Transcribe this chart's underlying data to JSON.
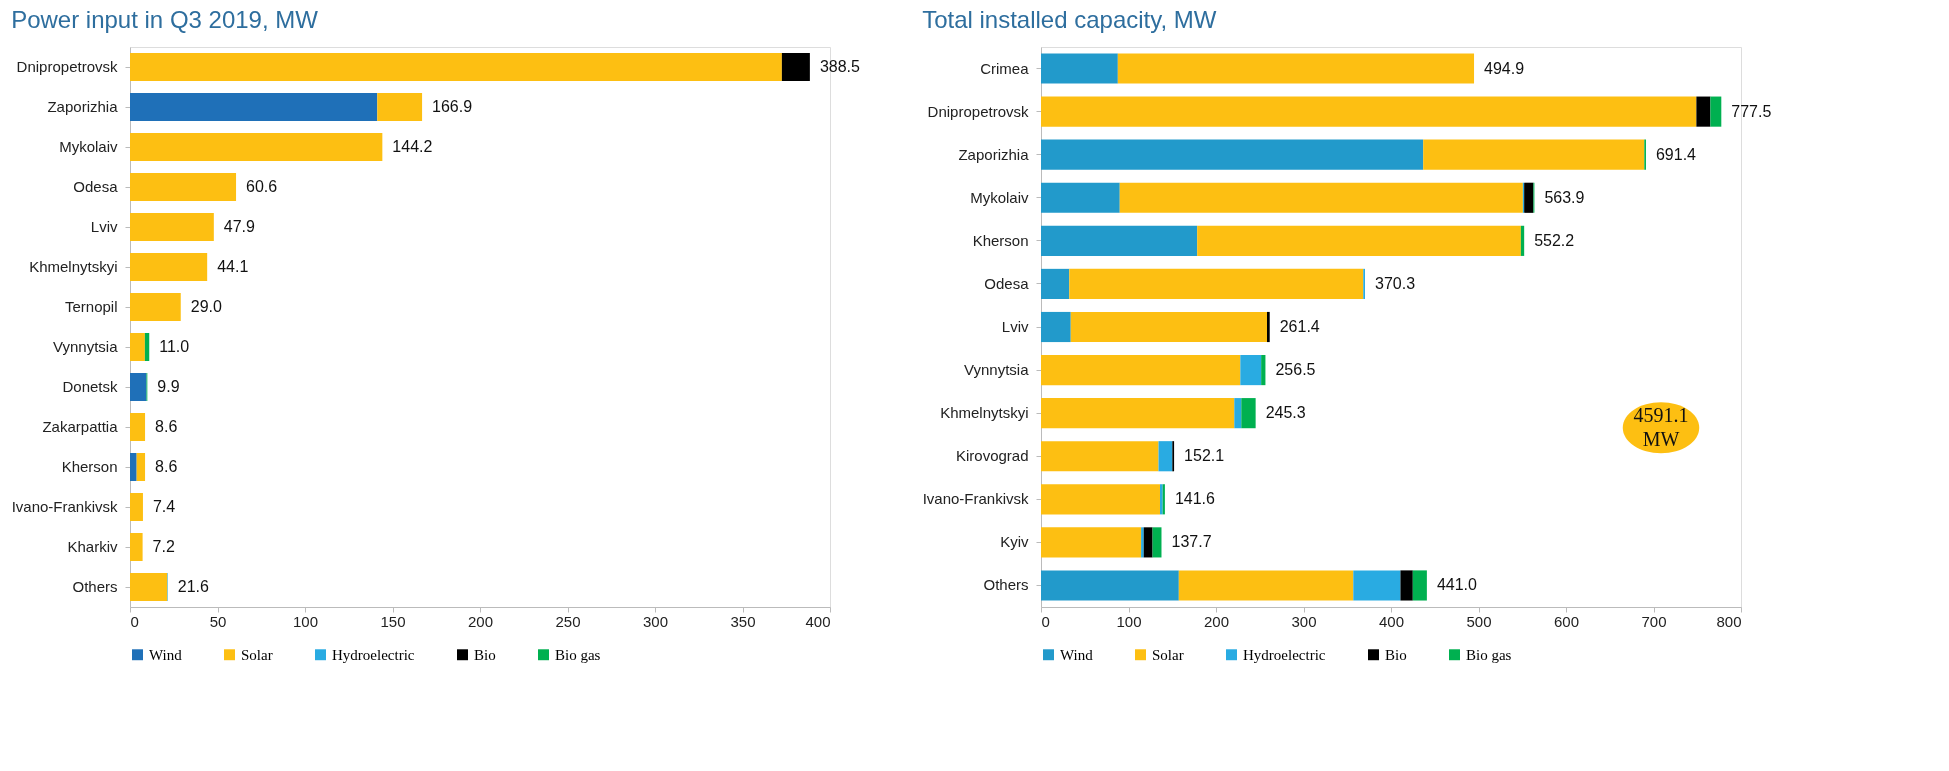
{
  "chart_data": [
    {
      "type": "bar",
      "orientation": "horizontal",
      "stacked": true,
      "title": "Power input in Q3 2019, MW",
      "categories": [
        "Dnipropetrovsk",
        "Zaporizhia",
        "Mykolaiv",
        "Odesa",
        "Lviv",
        "Khmelnytskyi",
        "Ternopil",
        "Vynnytsia",
        "Donetsk",
        "Zakarpattia",
        "Kherson",
        "Ivano-Frankivsk",
        "Kharkiv",
        "Others"
      ],
      "series": [
        {
          "name": "Wind",
          "color": "#1f70b8",
          "values": [
            0,
            141.3,
            0,
            0,
            0,
            0,
            0,
            0,
            9.4,
            0,
            3.8,
            0,
            0,
            0
          ]
        },
        {
          "name": "Solar",
          "color": "#fdbf12",
          "values": [
            372.5,
            25.6,
            144.2,
            60.6,
            47.9,
            44.1,
            29.0,
            8.5,
            0,
            8.6,
            4.8,
            7.4,
            7.2,
            21.3
          ]
        },
        {
          "name": "Hydroelectric",
          "color": "#29abe2",
          "values": [
            0,
            0,
            0,
            0,
            0,
            0,
            0,
            0,
            0,
            0,
            0,
            0,
            0,
            0.3
          ]
        },
        {
          "name": "Bio",
          "color": "#000000",
          "values": [
            16.0,
            0,
            0,
            0,
            0,
            0,
            0,
            0,
            0,
            0,
            0,
            0,
            0,
            0
          ]
        },
        {
          "name": "Bio gas",
          "color": "#00b050",
          "values": [
            0,
            0,
            0,
            0,
            0,
            0,
            0,
            2.5,
            0.5,
            0,
            0,
            0,
            0,
            0
          ]
        }
      ],
      "totals": [
        "388.5",
        "166.9",
        "144.2",
        "60.6",
        "47.9",
        "44.1",
        "29.0",
        "11.0",
        "9.9",
        "8.6",
        "8.6",
        "7.4",
        "7.2",
        "21.6"
      ],
      "xlim": [
        0,
        400
      ],
      "xticks": [
        0,
        50,
        100,
        150,
        200,
        250,
        300,
        350,
        400
      ],
      "legend": "bottom"
    },
    {
      "type": "bar",
      "orientation": "horizontal",
      "stacked": true,
      "title": "Total installed capacity, MW",
      "categories": [
        "Crimea",
        "Dnipropetrovsk",
        "Zaporizhia",
        "Mykolaiv",
        "Kherson",
        "Odesa",
        "Lviv",
        "Vynnytsia",
        "Khmelnytskyi",
        "Kirovograd",
        "Ivano-Frankivsk",
        "Kyiv",
        "Others"
      ],
      "series": [
        {
          "name": "Wind",
          "color": "#229acb",
          "values": [
            87.8,
            0,
            436.8,
            90.0,
            178.5,
            32.3,
            34.0,
            0,
            0,
            0,
            0,
            0,
            157.5
          ]
        },
        {
          "name": "Solar",
          "color": "#fdbf12",
          "values": [
            407.1,
            749.0,
            252.7,
            460.7,
            369.9,
            336.0,
            224.3,
            227.8,
            220.9,
            134.3,
            136.0,
            114.4,
            199.4
          ]
        },
        {
          "name": "Hydroelectric",
          "color": "#29abe2",
          "values": [
            0,
            0,
            0,
            1.5,
            0,
            2.0,
            0,
            23.8,
            8.0,
            15.8,
            3.0,
            3.0,
            53.9
          ]
        },
        {
          "name": "Bio",
          "color": "#000000",
          "values": [
            0,
            16.0,
            0,
            10.5,
            0,
            0,
            3.1,
            0,
            0,
            2.0,
            0,
            10.1,
            14.1
          ]
        },
        {
          "name": "Bio gas",
          "color": "#00b050",
          "values": [
            0,
            12.5,
            1.9,
            1.2,
            3.8,
            0,
            0,
            4.9,
            16.4,
            0,
            2.6,
            10.2,
            16.1
          ]
        }
      ],
      "totals": [
        "494.9",
        "777.5",
        "691.4",
        "563.9",
        "552.2",
        "370.3",
        "261.4",
        "256.5",
        "245.3",
        "152.1",
        "141.6",
        "137.7",
        "441.0"
      ],
      "xlim": [
        0,
        800
      ],
      "xticks": [
        0,
        100,
        200,
        300,
        400,
        500,
        600,
        700,
        800
      ],
      "legend": "bottom",
      "annotations": [
        "4591.1\nMW"
      ]
    }
  ]
}
